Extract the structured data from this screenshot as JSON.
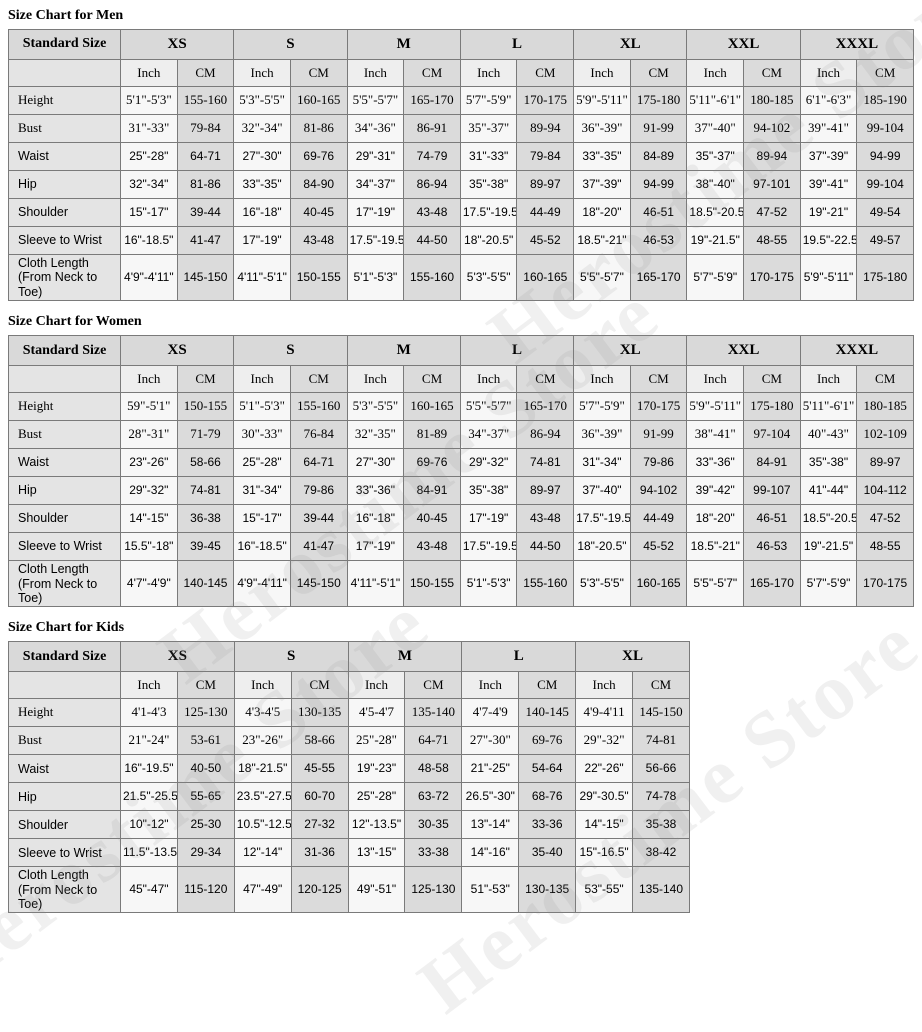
{
  "watermark": "Herostime Store",
  "labels": {
    "standard_size": "Standard Size",
    "inch": "Inch",
    "cm": "CM"
  },
  "colors": {
    "header_bg": "#d9d9d9",
    "label_bg": "#e4e4e4",
    "inch_col_bg": "#f7f7f7",
    "cm_col_bg": "#dbdbdb",
    "border": "#7a7a7a",
    "border_dark": "#666666",
    "text": "#000000",
    "watermark": "#8f8f8f"
  },
  "tables": [
    {
      "id": "men",
      "title": "Size Chart for Men",
      "sizes": [
        "XS",
        "S",
        "M",
        "L",
        "XL",
        "XXL",
        "XXXL"
      ],
      "rows": [
        {
          "label": "Height",
          "inch": [
            "5'1\"-5'3\"",
            "5'3\"-5'5\"",
            "5'5\"-5'7\"",
            "5'7\"-5'9\"",
            "5'9\"-5'11\"",
            "5'11\"-6'1\"",
            "6'1\"-6'3\""
          ],
          "cm": [
            "155-160",
            "160-165",
            "165-170",
            "170-175",
            "175-180",
            "180-185",
            "185-190"
          ]
        },
        {
          "label": "Bust",
          "inch": [
            "31\"-33\"",
            "32\"-34\"",
            "34\"-36\"",
            "35\"-37\"",
            "36\"-39\"",
            "37\"-40\"",
            "39\"-41\""
          ],
          "cm": [
            "79-84",
            "81-86",
            "86-91",
            "89-94",
            "91-99",
            "94-102",
            "99-104"
          ]
        },
        {
          "label": "Waist",
          "inch": [
            "25\"-28\"",
            "27\"-30\"",
            "29\"-31\"",
            "31\"-33\"",
            "33\"-35\"",
            "35\"-37\"",
            "37\"-39\""
          ],
          "cm": [
            "64-71",
            "69-76",
            "74-79",
            "79-84",
            "84-89",
            "89-94",
            "94-99"
          ]
        },
        {
          "label": "Hip",
          "inch": [
            "32\"-34\"",
            "33\"-35\"",
            "34\"-37\"",
            "35\"-38\"",
            "37\"-39\"",
            "38\"-40\"",
            "39\"-41\""
          ],
          "cm": [
            "81-86",
            "84-90",
            "86-94",
            "89-97",
            "94-99",
            "97-101",
            "99-104"
          ]
        },
        {
          "label": "Shoulder",
          "inch": [
            "15\"-17\"",
            "16\"-18\"",
            "17\"-19\"",
            "17.5\"-19.5\"",
            "18\"-20\"",
            "18.5\"-20.5\"",
            "19\"-21\""
          ],
          "cm": [
            "39-44",
            "40-45",
            "43-48",
            "44-49",
            "46-51",
            "47-52",
            "49-54"
          ]
        },
        {
          "label": "Sleeve to Wrist",
          "inch": [
            "16\"-18.5\"",
            "17\"-19\"",
            "17.5\"-19.5\"",
            "18\"-20.5\"",
            "18.5\"-21\"",
            "19\"-21.5\"",
            "19.5\"-22.5\""
          ],
          "cm": [
            "41-47",
            "43-48",
            "44-50",
            "45-52",
            "46-53",
            "48-55",
            "49-57"
          ]
        },
        {
          "label": "Cloth Length",
          "sublabel": "(From Neck to Toe)",
          "inch": [
            "4'9\"-4'11\"",
            "4'11\"-5'1\"",
            "5'1\"-5'3\"",
            "5'3\"-5'5\"",
            "5'5\"-5'7\"",
            "5'7\"-5'9\"",
            "5'9\"-5'11\""
          ],
          "cm": [
            "145-150",
            "150-155",
            "155-160",
            "160-165",
            "165-170",
            "170-175",
            "175-180"
          ]
        }
      ]
    },
    {
      "id": "women",
      "title": "Size Chart for Women",
      "sizes": [
        "XS",
        "S",
        "M",
        "L",
        "XL",
        "XXL",
        "XXXL"
      ],
      "rows": [
        {
          "label": "Height",
          "inch": [
            "59\"-5'1\"",
            "5'1\"-5'3\"",
            "5'3\"-5'5\"",
            "5'5\"-5'7\"",
            "5'7\"-5'9\"",
            "5'9\"-5'11\"",
            "5'11\"-6'1\""
          ],
          "cm": [
            "150-155",
            "155-160",
            "160-165",
            "165-170",
            "170-175",
            "175-180",
            "180-185"
          ]
        },
        {
          "label": "Bust",
          "inch": [
            "28\"-31\"",
            "30\"-33\"",
            "32\"-35\"",
            "34\"-37\"",
            "36\"-39\"",
            "38\"-41\"",
            "40\"-43\""
          ],
          "cm": [
            "71-79",
            "76-84",
            "81-89",
            "86-94",
            "91-99",
            "97-104",
            "102-109"
          ]
        },
        {
          "label": "Waist",
          "inch": [
            "23\"-26\"",
            "25\"-28\"",
            "27\"-30\"",
            "29\"-32\"",
            "31\"-34\"",
            "33\"-36\"",
            "35\"-38\""
          ],
          "cm": [
            "58-66",
            "64-71",
            "69-76",
            "74-81",
            "79-86",
            "84-91",
            "89-97"
          ]
        },
        {
          "label": "Hip",
          "inch": [
            "29\"-32\"",
            "31\"-34\"",
            "33\"-36\"",
            "35\"-38\"",
            "37\"-40\"",
            "39\"-42\"",
            "41\"-44\""
          ],
          "cm": [
            "74-81",
            "79-86",
            "84-91",
            "89-97",
            "94-102",
            "99-107",
            "104-112"
          ]
        },
        {
          "label": "Shoulder",
          "inch": [
            "14\"-15\"",
            "15\"-17\"",
            "16\"-18\"",
            "17\"-19\"",
            "17.5\"-19.5\"",
            "18\"-20\"",
            "18.5\"-20.5\""
          ],
          "cm": [
            "36-38",
            "39-44",
            "40-45",
            "43-48",
            "44-49",
            "46-51",
            "47-52"
          ]
        },
        {
          "label": "Sleeve to Wrist",
          "inch": [
            "15.5\"-18\"",
            "16\"-18.5\"",
            "17\"-19\"",
            "17.5\"-19.5\"",
            "18\"-20.5\"",
            "18.5\"-21\"",
            "19\"-21.5\""
          ],
          "cm": [
            "39-45",
            "41-47",
            "43-48",
            "44-50",
            "45-52",
            "46-53",
            "48-55"
          ]
        },
        {
          "label": "Cloth Length",
          "sublabel": "(From Neck to Toe)",
          "inch": [
            "4'7\"-4'9\"",
            "4'9\"-4'11\"",
            "4'11\"-5'1\"",
            "5'1\"-5'3\"",
            "5'3\"-5'5\"",
            "5'5\"-5'7\"",
            "5'7\"-5'9\""
          ],
          "cm": [
            "140-145",
            "145-150",
            "150-155",
            "155-160",
            "160-165",
            "165-170",
            "170-175"
          ]
        }
      ]
    },
    {
      "id": "kids",
      "title": "Size Chart for Kids",
      "sizes": [
        "XS",
        "S",
        "M",
        "L",
        "XL"
      ],
      "rows": [
        {
          "label": "Height",
          "inch": [
            "4'1-4'3",
            "4'3-4'5",
            "4'5-4'7",
            "4'7-4'9",
            "4'9-4'11"
          ],
          "cm": [
            "125-130",
            "130-135",
            "135-140",
            "140-145",
            "145-150"
          ]
        },
        {
          "label": "Bust",
          "inch": [
            "21\"-24\"",
            "23\"-26\"",
            "25\"-28\"",
            "27\"-30\"",
            "29\"-32\""
          ],
          "cm": [
            "53-61",
            "58-66",
            "64-71",
            "69-76",
            "74-81"
          ]
        },
        {
          "label": "Waist",
          "inch": [
            "16\"-19.5\"",
            "18\"-21.5\"",
            "19\"-23\"",
            "21\"-25\"",
            "22\"-26\""
          ],
          "cm": [
            "40-50",
            "45-55",
            "48-58",
            "54-64",
            "56-66"
          ]
        },
        {
          "label": "Hip",
          "inch": [
            "21.5\"-25.5\"",
            "23.5\"-27.5\"",
            "25\"-28\"",
            "26.5\"-30\"",
            "29\"-30.5\""
          ],
          "cm": [
            "55-65",
            "60-70",
            "63-72",
            "68-76",
            "74-78"
          ]
        },
        {
          "label": "Shoulder",
          "inch": [
            "10\"-12\"",
            "10.5\"-12.5\"",
            "12\"-13.5\"",
            "13\"-14\"",
            "14\"-15\""
          ],
          "cm": [
            "25-30",
            "27-32",
            "30-35",
            "33-36",
            "35-38"
          ]
        },
        {
          "label": "Sleeve to Wrist",
          "inch": [
            "11.5\"-13.5\"",
            "12\"-14\"",
            "13\"-15\"",
            "14\"-16\"",
            "15\"-16.5\""
          ],
          "cm": [
            "29-34",
            "31-36",
            "33-38",
            "35-40",
            "38-42"
          ]
        },
        {
          "label": "Cloth Length",
          "sublabel": "(From Neck to Toe)",
          "inch": [
            "45\"-47\"",
            "47\"-49\"",
            "49\"-51\"",
            "51\"-53\"",
            "53\"-55\""
          ],
          "cm": [
            "115-120",
            "120-125",
            "125-130",
            "130-135",
            "135-140"
          ]
        }
      ]
    }
  ]
}
